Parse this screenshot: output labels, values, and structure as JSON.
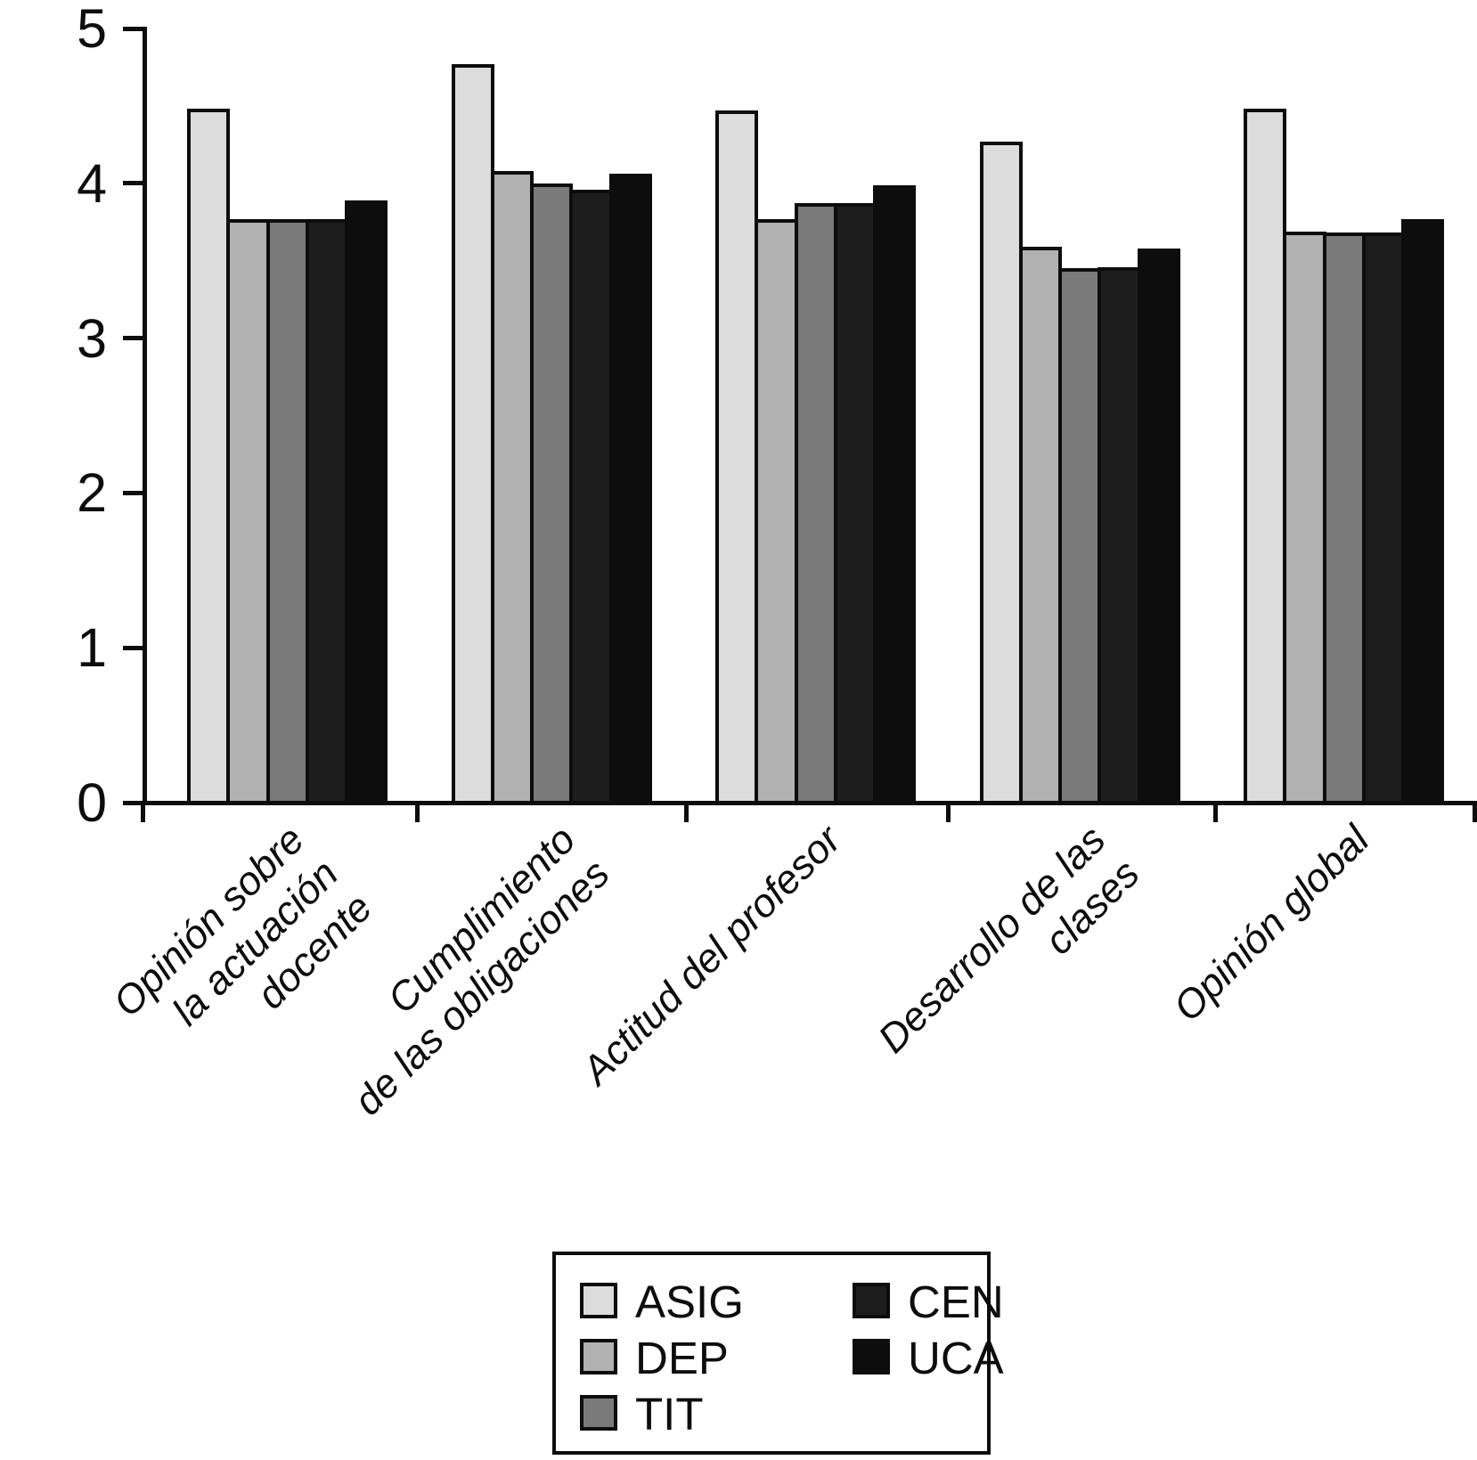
{
  "chart_data": {
    "type": "bar",
    "title": "",
    "xlabel": "",
    "ylabel": "",
    "ylim": [
      0,
      5
    ],
    "yticks": [
      0,
      1,
      2,
      3,
      4,
      5
    ],
    "grid": false,
    "legend_position": "bottom-center",
    "categories": [
      "Opinión sobre la actuación docente",
      "Cumplimiento de las obligaciones",
      "Actitud del profesor",
      "Desarrollo de las clases",
      "Opinión global"
    ],
    "categories_lines": [
      [
        "Opinión sobre",
        "la actuación",
        "docente"
      ],
      [
        "Cumplimiento",
        "de las obligaciones"
      ],
      [
        "Actitud del profesor"
      ],
      [
        "Desarrollo de las",
        "clases"
      ],
      [
        "Opinión global"
      ]
    ],
    "series": [
      {
        "name": "ASIG",
        "color": "#dcdcdc",
        "values": [
          4.48,
          4.77,
          4.47,
          4.27,
          4.48
        ]
      },
      {
        "name": "DEP",
        "color": "#b1b1b1",
        "values": [
          3.77,
          4.08,
          3.77,
          3.59,
          3.69
        ]
      },
      {
        "name": "TIT",
        "color": "#7a7a7a",
        "values": [
          3.77,
          4.0,
          3.87,
          3.45,
          3.68
        ]
      },
      {
        "name": "CEN",
        "color": "#1d1d1d",
        "values": [
          3.77,
          3.96,
          3.87,
          3.46,
          3.68
        ]
      },
      {
        "name": "UCA",
        "color": "#0d0d0d",
        "values": [
          3.89,
          4.06,
          3.99,
          3.58,
          3.77
        ]
      }
    ],
    "axis_color": "#0d0d0d"
  }
}
